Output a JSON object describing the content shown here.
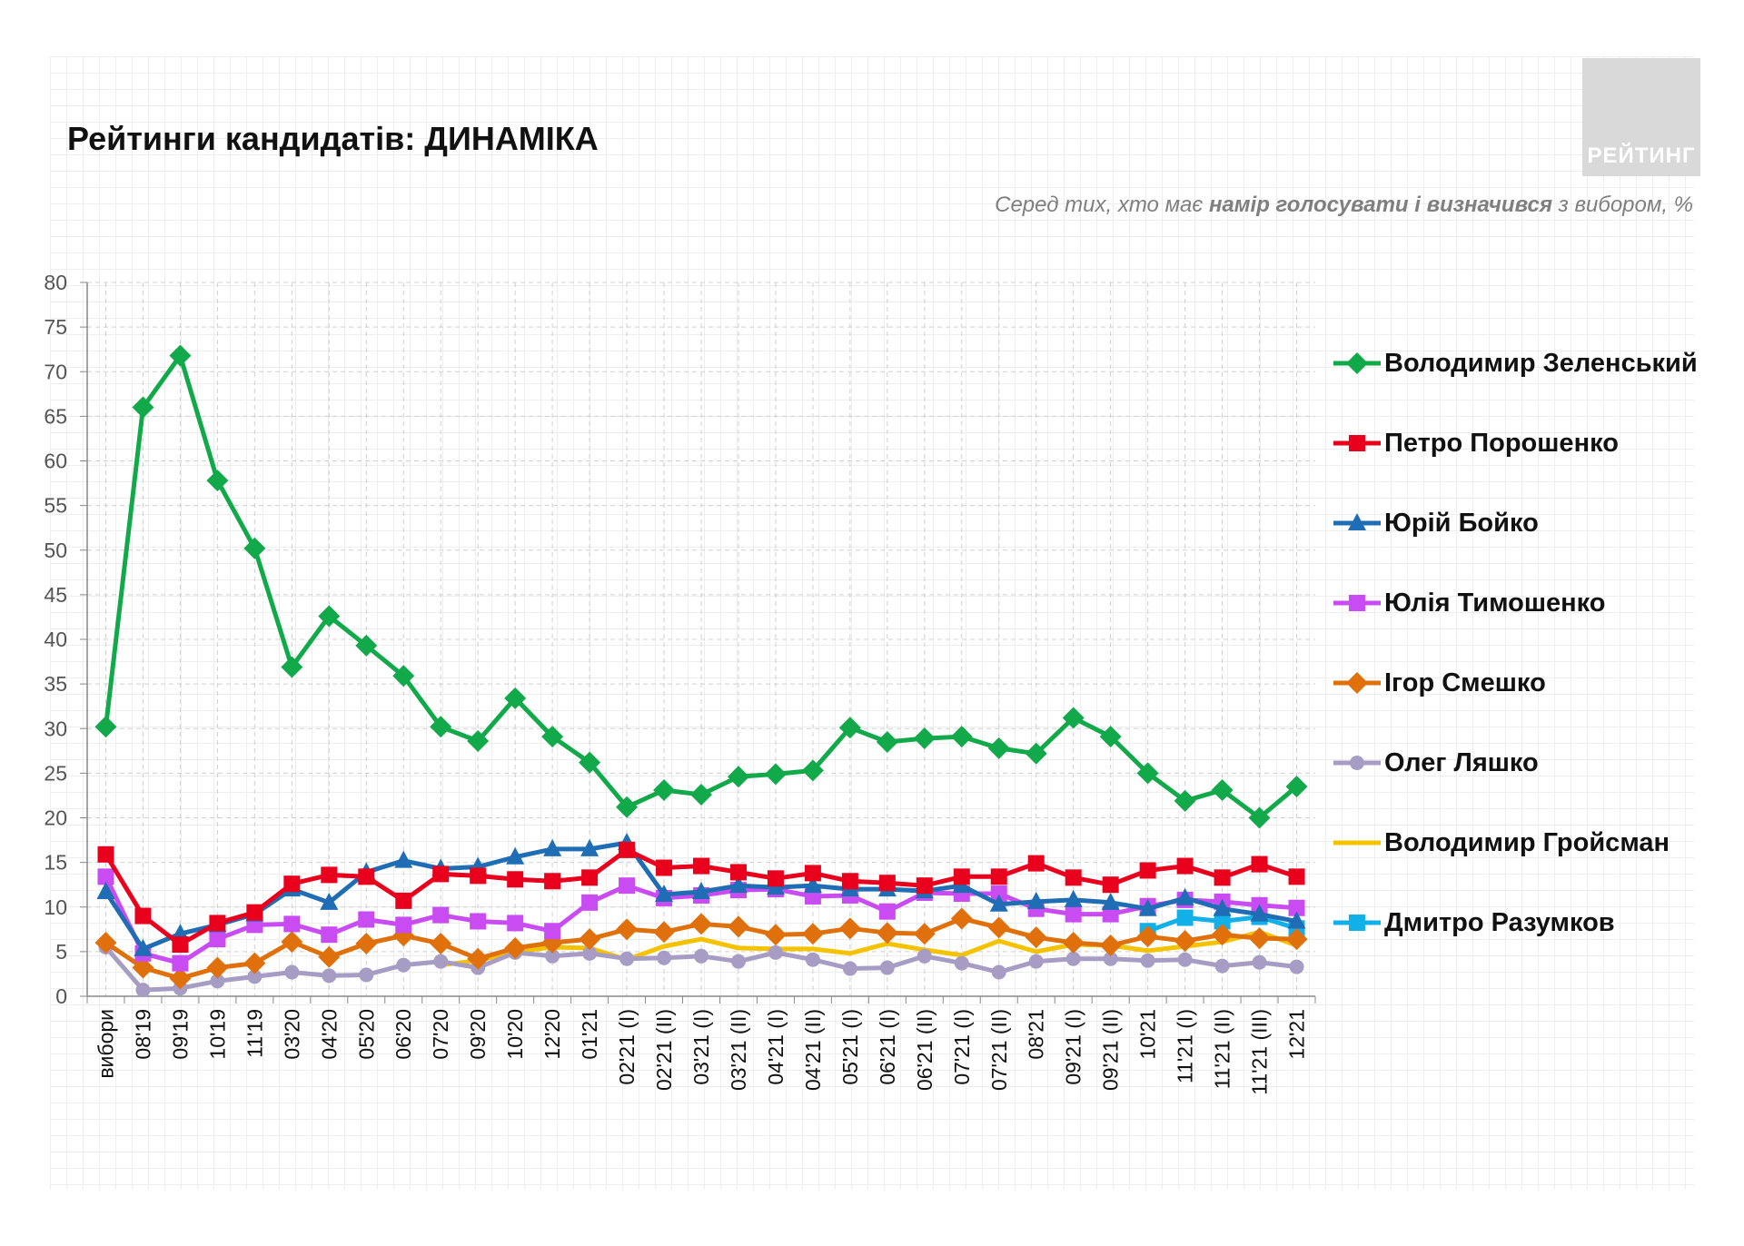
{
  "title": "Рейтинги кандидатів: ДИНАМІКА",
  "logo": {
    "text": "РЕЙТИНГ"
  },
  "subtitle": {
    "part1": "Серед тих, хто має ",
    "bold": "намір голосувати і визначився",
    "part2": " з вибором, %"
  },
  "chart_data": {
    "type": "line",
    "ylim": [
      0,
      80
    ],
    "ystep": 5,
    "grid": true,
    "legend_position": "right",
    "categories": [
      "вибори",
      "08'19",
      "09'19",
      "10'19",
      "11'19",
      "03'20",
      "04'20",
      "05'20",
      "06'20",
      "07'20",
      "09'20",
      "10'20",
      "12'20",
      "01'21",
      "02'21 (I)",
      "02'21 (II)",
      "03'21 (I)",
      "03'21 (II)",
      "04'21 (I)",
      "04'21 (II)",
      "05'21 (I)",
      "06'21 (I)",
      "06'21 (II)",
      "07'21 (I)",
      "07'21 (II)",
      "08'21",
      "09'21 (I)",
      "09'21 (II)",
      "10'21",
      "11'21 (I)",
      "11'21 (II)",
      "11'21 (III)",
      "12'21"
    ],
    "series": [
      {
        "name": "Володимир Зеленський",
        "color": "#12a94a",
        "marker": "diamond",
        "values": [
          30.2,
          66.0,
          71.8,
          57.8,
          50.2,
          36.9,
          42.6,
          39.3,
          35.9,
          30.2,
          28.6,
          33.4,
          29.1,
          26.2,
          21.2,
          23.1,
          22.6,
          24.6,
          24.9,
          25.3,
          30.1,
          28.5,
          28.9,
          29.1,
          27.8,
          27.2,
          31.2,
          29.1,
          25.0,
          21.9,
          23.1,
          20.0,
          23.5
        ]
      },
      {
        "name": "Петро Порошенко",
        "color": "#e8001c",
        "marker": "square",
        "values": [
          15.9,
          9.0,
          5.8,
          8.2,
          9.4,
          12.6,
          13.6,
          13.4,
          10.7,
          13.7,
          13.5,
          13.1,
          12.9,
          13.3,
          16.4,
          14.4,
          14.6,
          13.9,
          13.2,
          13.8,
          12.9,
          12.7,
          12.4,
          13.4,
          13.4,
          14.9,
          13.3,
          12.5,
          14.1,
          14.6,
          13.3,
          14.8,
          13.4
        ]
      },
      {
        "name": "Юрій Бойко",
        "color": "#1f6db5",
        "marker": "triangle",
        "values": [
          11.7,
          5.3,
          7.0,
          8.0,
          9.2,
          12.0,
          10.5,
          13.9,
          15.2,
          14.3,
          14.5,
          15.6,
          16.5,
          16.5,
          17.2,
          11.4,
          11.7,
          12.4,
          12.2,
          12.4,
          12.0,
          12.0,
          11.8,
          12.4,
          10.3,
          10.6,
          10.8,
          10.5,
          9.8,
          11.0,
          9.8,
          9.2,
          8.4
        ]
      },
      {
        "name": "Юлія Тимошенко",
        "color": "#c94cf2",
        "marker": "square",
        "values": [
          13.4,
          4.8,
          3.7,
          6.4,
          8.0,
          8.1,
          6.9,
          8.6,
          8.0,
          9.1,
          8.4,
          8.2,
          7.3,
          10.5,
          12.4,
          11.0,
          11.3,
          11.9,
          12.0,
          11.2,
          11.3,
          9.5,
          11.6,
          11.5,
          11.5,
          9.8,
          9.2,
          9.2,
          10.1,
          10.8,
          10.6,
          10.2,
          9.9
        ]
      },
      {
        "name": "Ігор Смешко",
        "color": "#e0700c",
        "marker": "diamond",
        "values": [
          6.0,
          3.2,
          2.0,
          3.2,
          3.7,
          6.1,
          4.4,
          5.9,
          6.8,
          5.9,
          4.2,
          5.4,
          6.0,
          6.4,
          7.5,
          7.2,
          8.1,
          7.8,
          6.9,
          7.0,
          7.6,
          7.1,
          7.0,
          8.7,
          7.7,
          6.6,
          6.0,
          5.7,
          6.7,
          6.2,
          6.9,
          6.5,
          6.4
        ]
      },
      {
        "name": "Олег Ляшко",
        "color": "#a79dc4",
        "marker": "circle",
        "values": [
          5.5,
          0.7,
          0.9,
          1.7,
          2.2,
          2.7,
          2.3,
          2.4,
          3.5,
          3.9,
          3.2,
          4.9,
          4.5,
          4.8,
          4.2,
          4.3,
          4.5,
          3.9,
          4.9,
          4.1,
          3.1,
          3.2,
          4.5,
          3.7,
          2.7,
          3.9,
          4.2,
          4.2,
          4.0,
          4.1,
          3.4,
          3.8,
          3.3
        ]
      },
      {
        "name": "Володимир Гройсман",
        "color": "#f5c200",
        "marker": "none",
        "values": [
          null,
          null,
          null,
          null,
          null,
          null,
          null,
          null,
          null,
          3.5,
          4.0,
          5.0,
          5.5,
          5.4,
          4.1,
          5.6,
          6.4,
          5.4,
          5.3,
          5.3,
          4.8,
          5.9,
          5.2,
          4.6,
          6.2,
          5.0,
          5.8,
          5.7,
          5.1,
          5.6,
          6.1,
          7.2,
          5.7
        ]
      },
      {
        "name": "Дмитро Разумков",
        "color": "#12b0e8",
        "marker": "square",
        "values": [
          null,
          null,
          null,
          null,
          null,
          null,
          null,
          null,
          null,
          null,
          null,
          null,
          null,
          null,
          null,
          null,
          null,
          null,
          null,
          null,
          null,
          null,
          null,
          null,
          null,
          null,
          null,
          null,
          7.3,
          8.8,
          8.4,
          8.9,
          7.6
        ]
      }
    ]
  }
}
